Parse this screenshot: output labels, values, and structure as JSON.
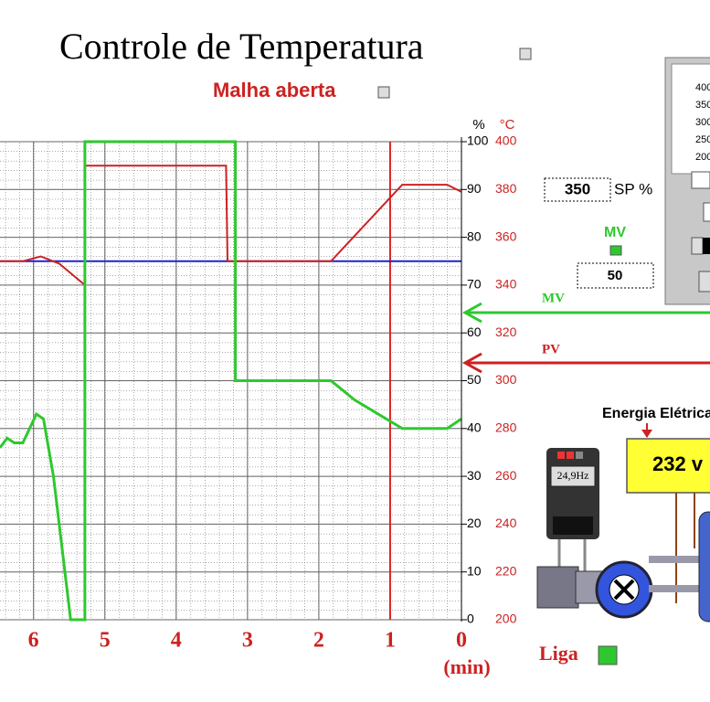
{
  "title": "Controle de Temperatura",
  "mode": "Malha aberta",
  "chart_data": {
    "type": "line",
    "xlabel": "(min)",
    "ylabel": "%",
    "y2label": "°C",
    "xlim": [
      6.47,
      0
    ],
    "xticks": [
      0,
      1,
      2,
      3,
      4,
      5,
      6
    ],
    "ylim": [
      0,
      100
    ],
    "yticks": [
      0,
      10,
      20,
      30,
      40,
      50,
      60,
      70,
      80,
      90,
      100
    ],
    "y2lim": [
      200,
      400
    ],
    "y2ticks": [
      200,
      220,
      240,
      260,
      280,
      300,
      320,
      340,
      360,
      380,
      400
    ],
    "grid": true,
    "cursor_x": 1,
    "cursor_color": "#dd2222",
    "series": [
      {
        "name": "MV",
        "color": "#2ec82e",
        "x": [
          6.47,
          6.37,
          6.27,
          6.15,
          5.96,
          5.86,
          5.72,
          5.48,
          5.28,
          5.28,
          3.17,
          3.17,
          1.83,
          1.5,
          0.83,
          0.2,
          0
        ],
        "values": [
          36,
          38,
          37,
          37,
          43,
          42,
          30,
          0,
          0,
          100,
          100,
          50,
          50,
          46,
          40,
          40,
          42
        ]
      },
      {
        "name": "PV",
        "color": "#cc2222",
        "axis": "y2",
        "x": [
          6.47,
          6.15,
          5.9,
          5.64,
          5.28,
          5.28,
          3.3,
          3.28,
          1.83,
          0.83,
          0.2,
          0
        ],
        "values": [
          350,
          350,
          352,
          349,
          340,
          390,
          390,
          350,
          350,
          382,
          382,
          379
        ]
      },
      {
        "color": "#2222cc",
        "axis": "y2",
        "x": [
          6.47,
          0
        ],
        "values": [
          350,
          350
        ]
      }
    ]
  },
  "setpoint": {
    "value": "350",
    "label": "SP %"
  },
  "mv_output": "50",
  "scale_panel": [
    400,
    350,
    300,
    250,
    200
  ],
  "energy": {
    "label": "Energia Elétrica",
    "voltage": "232 v"
  },
  "inverter": "24,9Hz",
  "power": "Liga"
}
